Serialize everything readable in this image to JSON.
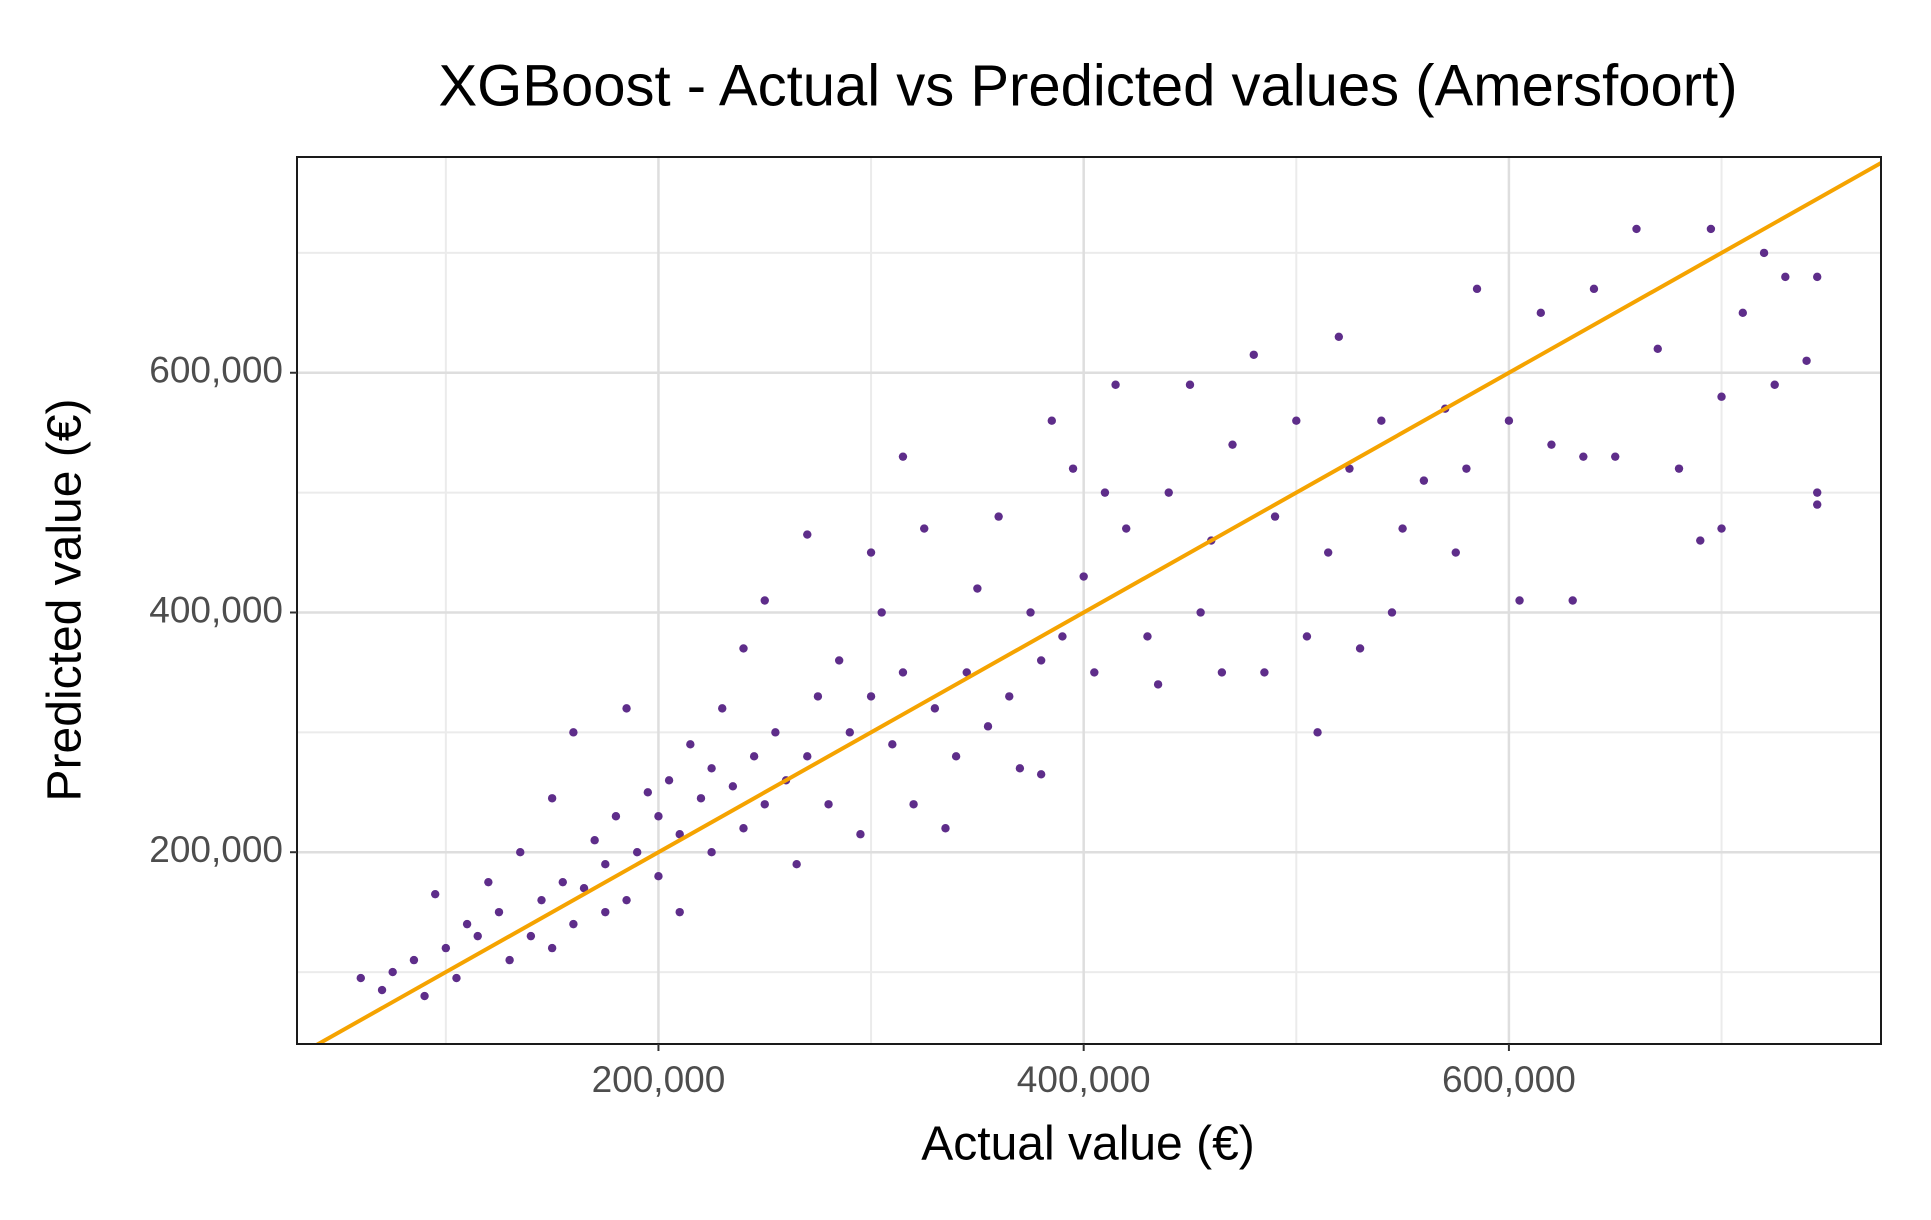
{
  "chart_data": {
    "type": "scatter",
    "title": "XGBoost - Actual vs Predicted values (Amersfoort)",
    "x_label": "Actual value (€)",
    "y_label": "Predicted value (€)",
    "xlim": [
      30000,
      775000
    ],
    "ylim": [
      40000,
      780000
    ],
    "xticks": [
      {
        "value": 200000,
        "label": "200,000"
      },
      {
        "value": 400000,
        "label": "400,000"
      },
      {
        "value": 600000,
        "label": "600,000"
      }
    ],
    "yticks": [
      {
        "value": 200000,
        "label": "200,000"
      },
      {
        "value": 400000,
        "label": "400,000"
      },
      {
        "value": 600000,
        "label": "600,000"
      }
    ],
    "xminorticks": [
      100000,
      300000,
      500000,
      700000
    ],
    "yminorticks": [
      100000,
      300000,
      500000,
      700000
    ],
    "grid": true,
    "reference_line": {
      "slope": 1,
      "intercept": 0,
      "color": "#f5a300"
    },
    "series": [
      {
        "color": "#5e2d8a",
        "x": [
          60000,
          70000,
          75000,
          85000,
          90000,
          95000,
          100000,
          105000,
          110000,
          115000,
          120000,
          125000,
          130000,
          135000,
          140000,
          145000,
          150000,
          150000,
          155000,
          160000,
          160000,
          165000,
          170000,
          175000,
          175000,
          180000,
          185000,
          185000,
          190000,
          195000,
          200000,
          200000,
          205000,
          210000,
          210000,
          215000,
          220000,
          225000,
          225000,
          230000,
          235000,
          240000,
          240000,
          245000,
          250000,
          250000,
          255000,
          260000,
          265000,
          270000,
          270000,
          275000,
          280000,
          285000,
          290000,
          295000,
          300000,
          300000,
          305000,
          310000,
          315000,
          315000,
          320000,
          325000,
          330000,
          335000,
          340000,
          345000,
          350000,
          355000,
          360000,
          365000,
          370000,
          375000,
          380000,
          380000,
          385000,
          390000,
          395000,
          400000,
          405000,
          410000,
          415000,
          420000,
          430000,
          435000,
          440000,
          450000,
          455000,
          460000,
          465000,
          470000,
          480000,
          485000,
          490000,
          500000,
          505000,
          510000,
          515000,
          520000,
          525000,
          530000,
          540000,
          545000,
          550000,
          560000,
          570000,
          575000,
          580000,
          585000,
          600000,
          605000,
          615000,
          620000,
          630000,
          635000,
          640000,
          650000,
          660000,
          670000,
          680000,
          690000,
          695000,
          700000,
          700000,
          710000,
          720000,
          725000,
          730000,
          740000,
          745000,
          745000,
          745000
        ],
        "values": [
          95000,
          85000,
          100000,
          110000,
          80000,
          165000,
          120000,
          95000,
          140000,
          130000,
          175000,
          150000,
          110000,
          200000,
          130000,
          160000,
          245000,
          120000,
          175000,
          300000,
          140000,
          170000,
          210000,
          190000,
          150000,
          230000,
          160000,
          320000,
          200000,
          250000,
          180000,
          230000,
          260000,
          215000,
          150000,
          290000,
          245000,
          270000,
          200000,
          320000,
          255000,
          370000,
          220000,
          280000,
          410000,
          240000,
          300000,
          260000,
          190000,
          465000,
          280000,
          330000,
          240000,
          360000,
          300000,
          215000,
          450000,
          330000,
          400000,
          290000,
          530000,
          350000,
          240000,
          470000,
          320000,
          220000,
          280000,
          350000,
          420000,
          305000,
          480000,
          330000,
          270000,
          400000,
          265000,
          360000,
          560000,
          380000,
          520000,
          430000,
          350000,
          500000,
          590000,
          470000,
          380000,
          340000,
          500000,
          590000,
          400000,
          460000,
          350000,
          540000,
          615000,
          350000,
          480000,
          560000,
          380000,
          300000,
          450000,
          630000,
          520000,
          370000,
          560000,
          400000,
          470000,
          510000,
          570000,
          450000,
          520000,
          670000,
          560000,
          410000,
          650000,
          540000,
          410000,
          530000,
          670000,
          530000,
          720000,
          620000,
          520000,
          460000,
          720000,
          580000,
          470000,
          650000,
          700000,
          590000,
          680000,
          610000,
          500000,
          680000,
          490000
        ]
      }
    ]
  }
}
